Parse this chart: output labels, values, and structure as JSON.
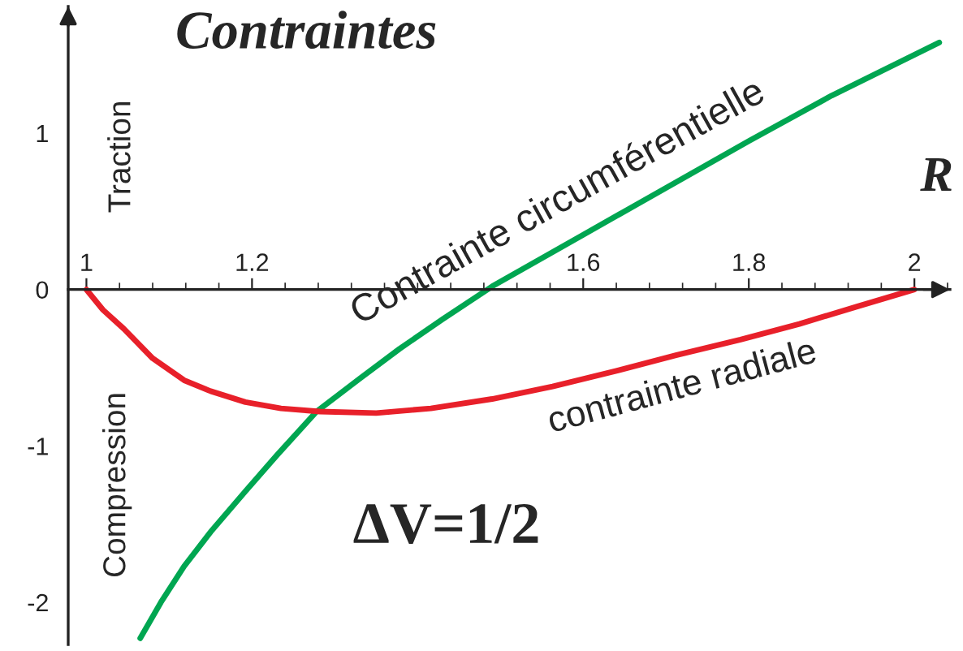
{
  "chart_data": {
    "type": "line",
    "title": "Contraintes",
    "xlabel": "R",
    "xlim": [
      0.978,
      2.043
    ],
    "ylim": [
      -2.27,
      1.81
    ],
    "xticks": [
      1,
      1.2,
      1.6,
      1.8,
      2
    ],
    "yticks": [
      -2,
      -1,
      0,
      1
    ],
    "grid": false,
    "marker": "none",
    "line_style": "solid",
    "series": [
      {
        "color": "#00a651",
        "x": [
          1.065,
          1.09,
          1.118,
          1.15,
          1.192,
          1.23,
          1.278,
          1.33,
          1.378,
          1.43,
          1.49,
          1.6,
          1.7,
          1.8,
          1.9,
          2.03
        ],
        "values": [
          -2.23,
          -2.0,
          -1.77,
          -1.55,
          -1.29,
          -1.06,
          -0.78,
          -0.57,
          -0.38,
          -0.19,
          0.02,
          0.35,
          0.65,
          0.95,
          1.24,
          1.58
        ]
      },
      {
        "color": "#e8202a",
        "x": [
          1,
          1.02,
          1.045,
          1.08,
          1.118,
          1.15,
          1.192,
          1.235,
          1.282,
          1.35,
          1.416,
          1.49,
          1.563,
          1.64,
          1.712,
          1.79,
          1.861,
          1.93,
          2
        ],
        "values": [
          0,
          -0.13,
          -0.25,
          -0.44,
          -0.58,
          -0.65,
          -0.72,
          -0.76,
          -0.78,
          -0.79,
          -0.76,
          -0.7,
          -0.62,
          -0.52,
          -0.42,
          -0.32,
          -0.22,
          -0.11,
          0
        ]
      }
    ],
    "annotations": [
      "Traction",
      "Compression",
      "ΔV=1/2",
      "Contrainte circumférentielle",
      "contrainte radiale"
    ]
  }
}
